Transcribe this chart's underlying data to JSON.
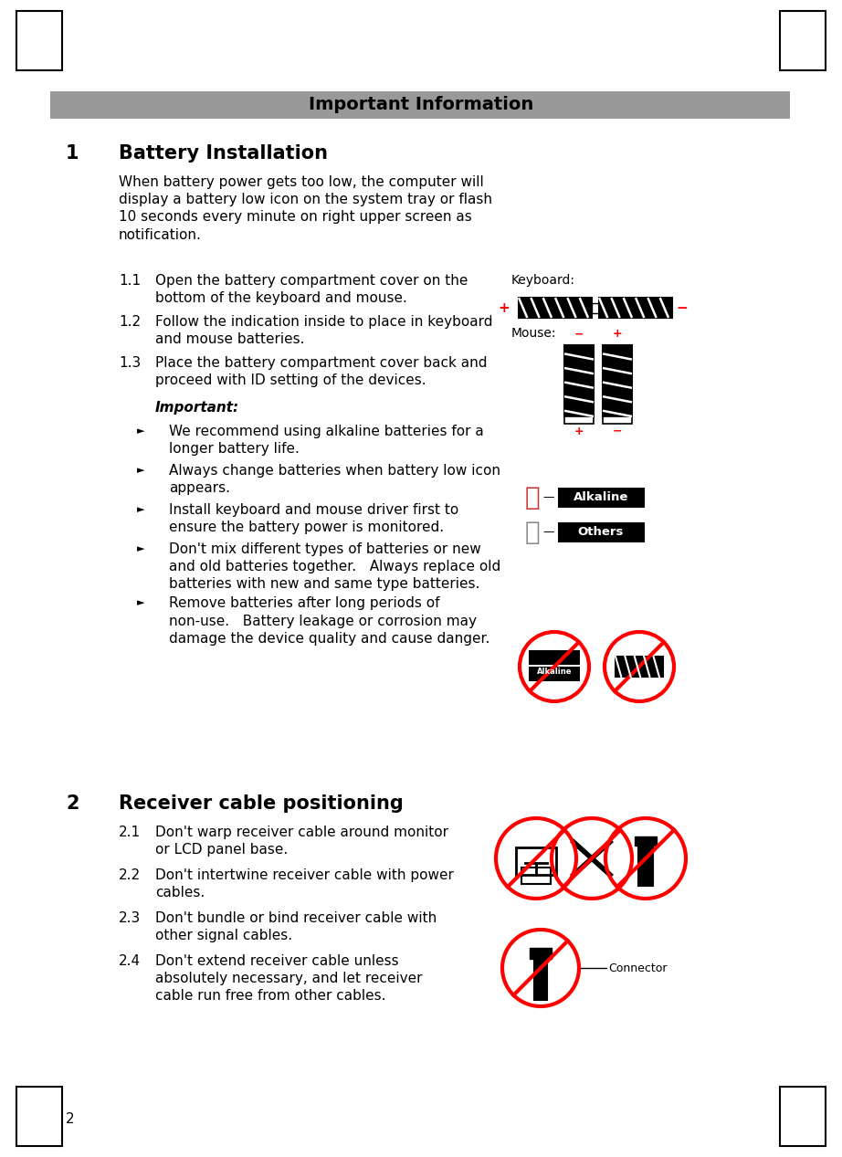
{
  "title": "Important Information",
  "title_bg": "#999999",
  "page_bg": "#ffffff",
  "section1_num": "1",
  "section1_title": "Battery Installation",
  "section1_intro": "When battery power gets too low, the computer will\ndisplay a battery low icon on the system tray or flash\n10 seconds every minute on right upper screen as\nnotification.",
  "section1_items": [
    {
      "num": "1.1",
      "text": "Open the battery compartment cover on the\nbottom of the keyboard and mouse."
    },
    {
      "num": "1.2",
      "text": "Follow the indication inside to place in keyboard\nand mouse batteries."
    },
    {
      "num": "1.3",
      "text": "Place the battery compartment cover back and\nproceed with ID setting of the devices."
    }
  ],
  "important_label": "Important:",
  "bullet_items": [
    "We recommend using alkaline batteries for a\nlonger battery life.",
    "Always change batteries when battery low icon\nappears.",
    "Install keyboard and mouse driver first to\nensure the battery power is monitored.",
    "Don't mix different types of batteries or new\nand old batteries together.   Always replace old\nbatteries with new and same type batteries.",
    "Remove batteries after long periods of\nnon-use.   Battery leakage or corrosion may\ndamage the device quality and cause danger."
  ],
  "section2_num": "2",
  "section2_title": "Receiver cable positioning",
  "section2_items": [
    {
      "num": "2.1",
      "text": "Don't warp receiver cable around monitor\nor LCD panel base."
    },
    {
      "num": "2.2",
      "text": "Don't intertwine receiver cable with power\ncables."
    },
    {
      "num": "2.3",
      "text": "Don't bundle or bind receiver cable with\nother signal cables."
    },
    {
      "num": "2.4",
      "text": "Don't extend receiver cable unless\nabsolutely necessary, and let receiver\ncable run free from other cables."
    }
  ],
  "page_number": "2",
  "body_fontsize": 11,
  "section_title_fontsize": 15,
  "title_fontsize": 14,
  "small_fontsize": 10
}
